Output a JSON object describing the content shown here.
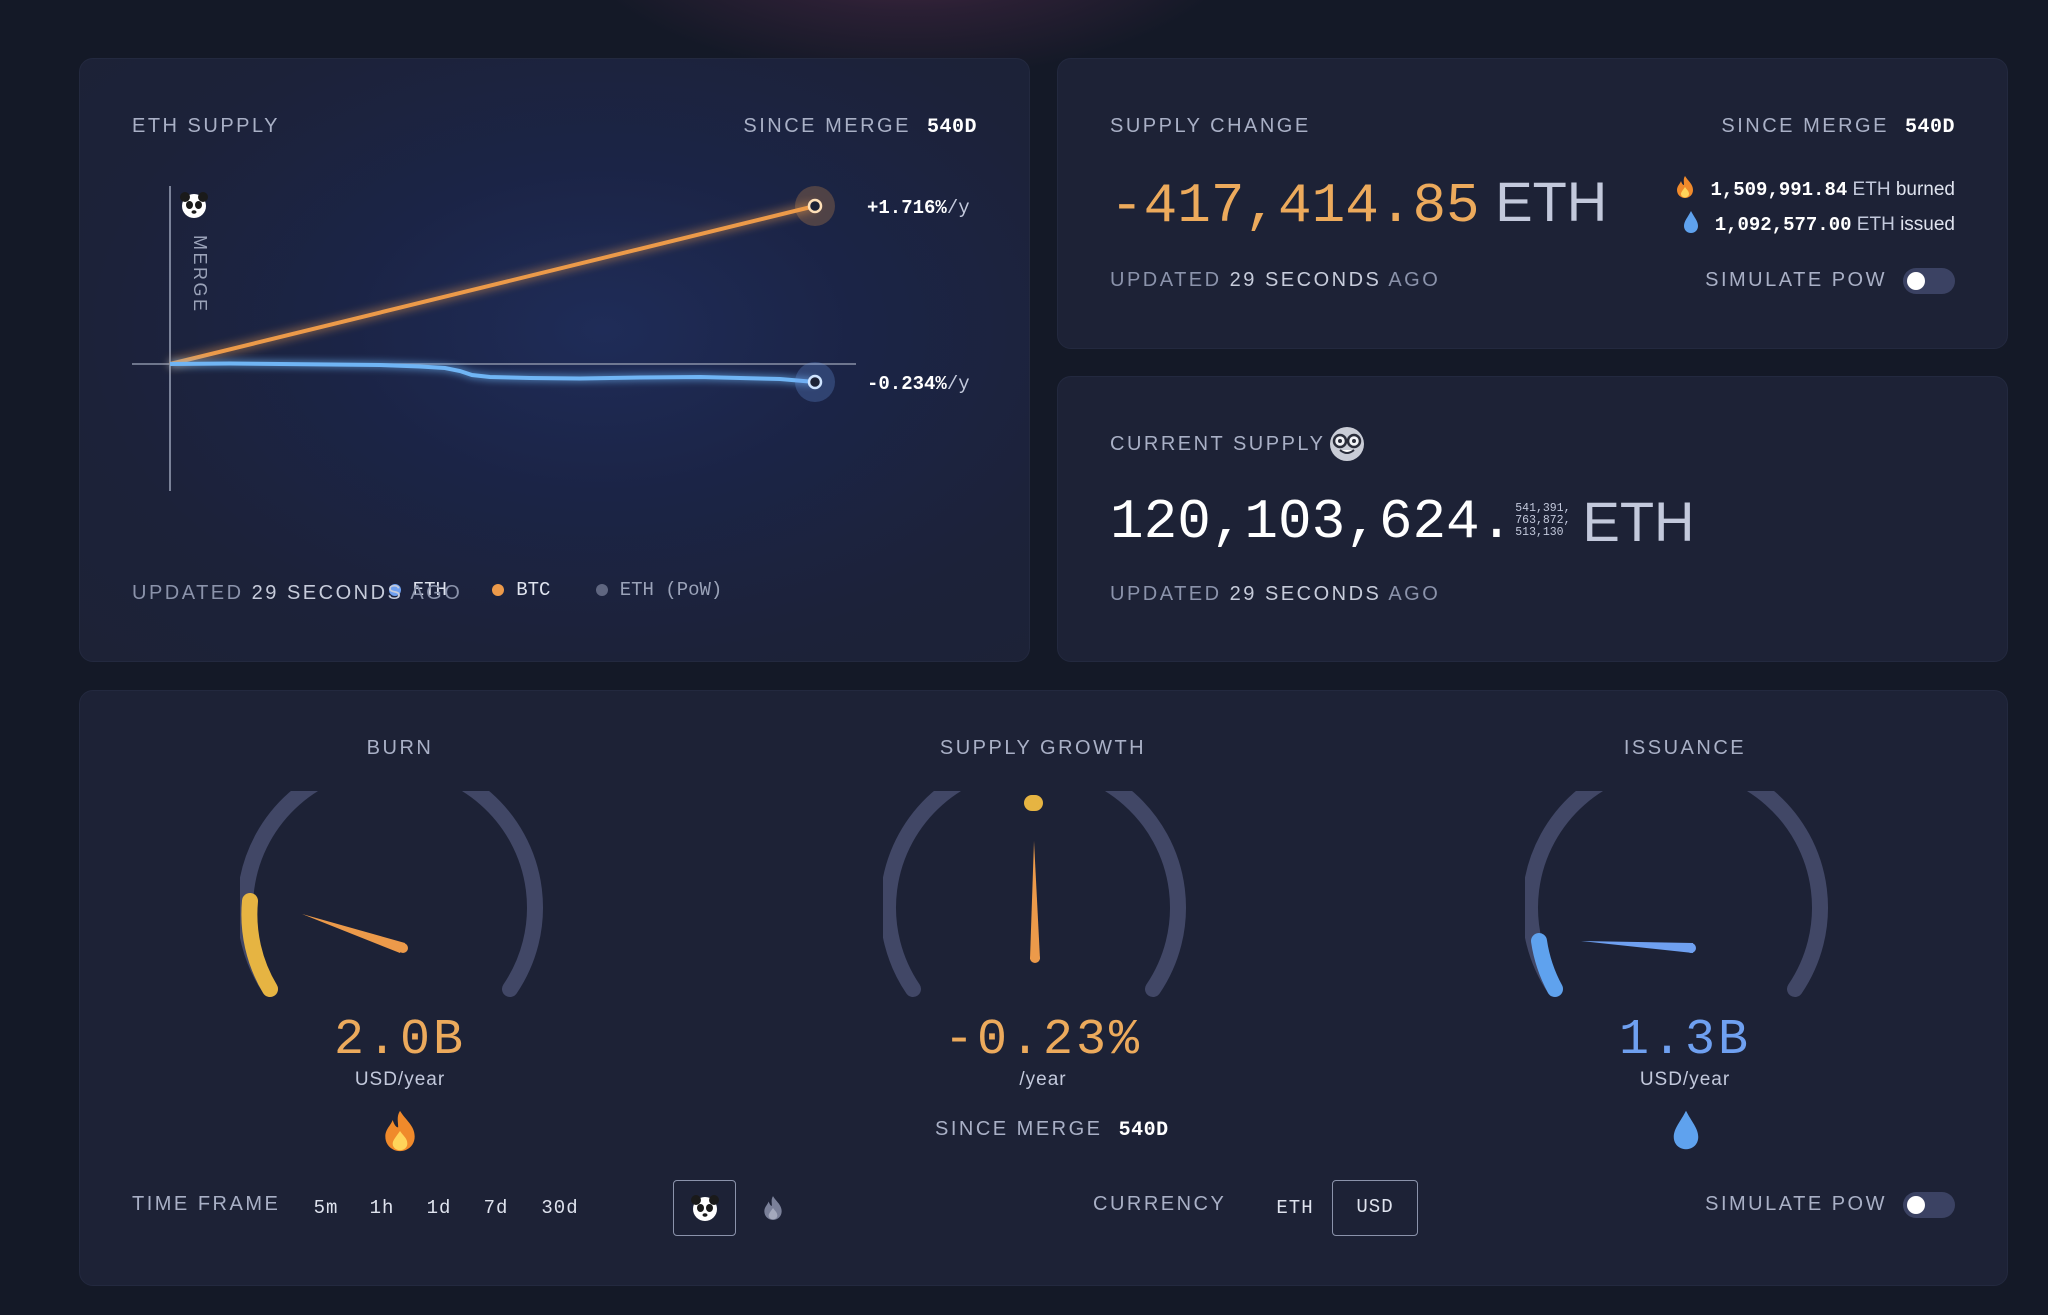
{
  "eth_supply_card": {
    "title": "ETH SUPPLY",
    "since_label": "SINCE MERGE",
    "since_value": "540d",
    "merge_label": "MERGE",
    "btc_rate": "+1.716%",
    "eth_rate": "-0.234%",
    "rate_unit": "/y",
    "legend": [
      {
        "label": "ETH",
        "color": "#6fa0f0"
      },
      {
        "label": "BTC",
        "color": "#ec9a4a"
      },
      {
        "label": "ETH (PoW)",
        "color": "#5f6680"
      }
    ],
    "updated_prefix": "UPDATED",
    "updated_value": "29 SECONDS",
    "updated_suffix": "AGO"
  },
  "supply_change_card": {
    "title": "SUPPLY CHANGE",
    "since_label": "SINCE MERGE",
    "since_value": "540d",
    "value": "-417,414.85",
    "unit": "ETH",
    "burned_value": "1,509,991.84",
    "burned_unit": "ETH",
    "burned_label": "burned",
    "issued_value": "1,092,577.00",
    "issued_unit": "ETH",
    "issued_label": "issued",
    "updated_prefix": "UPDATED",
    "updated_value": "29 SECONDS",
    "updated_suffix": "AGO",
    "simulate_label": "SIMULATE PoW"
  },
  "current_supply_card": {
    "title": "CURRENT SUPPLY",
    "value": "120,103,624.",
    "decimals_line1": "541,391,",
    "decimals_line2": "763,872,",
    "decimals_line3": "513,130",
    "unit": "ETH",
    "updated_prefix": "UPDATED",
    "updated_value": "29 SECONDS",
    "updated_suffix": "AGO"
  },
  "gauges": {
    "burn": {
      "title": "BURN",
      "value": "2.0B",
      "unit": "USD/year",
      "color": "#ecaa5c"
    },
    "supply_growth": {
      "title": "SUPPLY GROWTH",
      "value": "-0.23%",
      "unit": "/year",
      "since_label": "SINCE MERGE",
      "since_value": "540d",
      "color": "#ecaa5c"
    },
    "issuance": {
      "title": "ISSUANCE",
      "value": "1.3B",
      "unit": "USD/year",
      "color": "#6fa0f0"
    }
  },
  "controls": {
    "time_frame_label": "TIME FRAME",
    "time_frames": [
      "5m",
      "1h",
      "1d",
      "7d",
      "30d"
    ],
    "currency_label": "CURRENCY",
    "currency_eth": "ETH",
    "currency_usd": "USD",
    "simulate_label": "SIMULATE PoW"
  },
  "colors": {
    "orange": "#ec9a4a",
    "blue": "#6fa0f0",
    "gauge_track": "#414766"
  }
}
